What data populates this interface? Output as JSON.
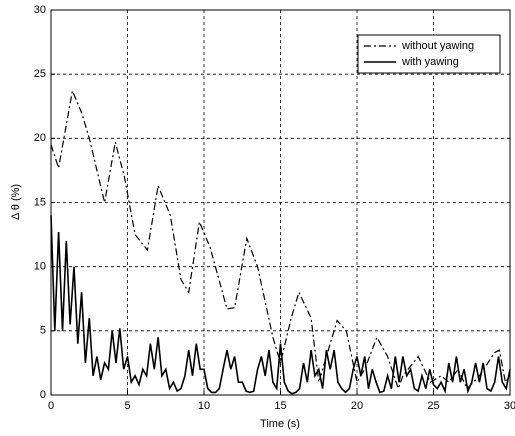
{
  "chart_data": {
    "type": "line",
    "xlabel": "Time (s)",
    "ylabel": "Δ θ (%)",
    "xlim": [
      0,
      30
    ],
    "ylim": [
      0,
      30
    ],
    "xticks": [
      0,
      5,
      10,
      15,
      20,
      25,
      30
    ],
    "yticks": [
      0,
      5,
      10,
      15,
      20,
      25,
      30
    ],
    "grid": true,
    "legend": "upper right",
    "series": [
      {
        "name": "without yawing",
        "color": "#000000",
        "dash": "dashdot",
        "x": [
          0,
          0.5,
          1.4,
          2,
          2.5,
          3.5,
          4.2,
          4.8,
          5.5,
          6.3,
          7,
          7.8,
          8.5,
          9,
          9.7,
          10.4,
          11.5,
          12,
          12.8,
          13.5,
          14.5,
          15,
          15.7,
          16.2,
          17,
          17.5,
          18,
          18.7,
          19.3,
          20,
          20.5,
          21.3,
          22,
          22.7,
          23,
          24,
          24.8,
          25.5,
          26,
          26.6,
          27.2,
          28,
          29,
          29.3,
          29.7,
          30
        ],
        "values": [
          19.5,
          17.7,
          23.7,
          22,
          20,
          15,
          19.7,
          17,
          12.5,
          11.3,
          16.3,
          14,
          9,
          8,
          13.5,
          11.5,
          6.7,
          6.8,
          12.2,
          10,
          4.5,
          2.5,
          6,
          8,
          6,
          1,
          3,
          5.8,
          5,
          1,
          2,
          4.5,
          3,
          0.5,
          1.5,
          3,
          1,
          1.5,
          1,
          2,
          0.5,
          1.5,
          3.3,
          3.5,
          1,
          1.5
        ]
      },
      {
        "name": "with yawing",
        "color": "#000000",
        "dash": "solid",
        "x": [
          0,
          0.25,
          0.5,
          0.75,
          1,
          1.25,
          1.5,
          1.75,
          2,
          2.25,
          2.5,
          2.75,
          3,
          3.25,
          3.5,
          3.75,
          4,
          4.25,
          4.5,
          4.75,
          5,
          5.25,
          5.5,
          5.75,
          6,
          6.25,
          6.5,
          6.75,
          7,
          7.25,
          7.5,
          7.75,
          8,
          8.25,
          8.5,
          8.75,
          9,
          9.25,
          9.5,
          9.75,
          10,
          10.25,
          10.5,
          10.75,
          11,
          11.25,
          11.5,
          11.75,
          12,
          12.25,
          12.5,
          12.75,
          13,
          13.25,
          13.5,
          13.75,
          14,
          14.25,
          14.5,
          14.75,
          15,
          15.25,
          15.5,
          15.75,
          16,
          16.25,
          16.5,
          16.75,
          17,
          17.25,
          17.5,
          17.75,
          18,
          18.25,
          18.5,
          18.75,
          19,
          19.25,
          19.5,
          19.75,
          20,
          20.25,
          20.5,
          20.75,
          21,
          21.25,
          21.5,
          21.75,
          22,
          22.25,
          22.5,
          22.75,
          23,
          23.25,
          23.5,
          23.75,
          24,
          24.25,
          24.5,
          24.75,
          25,
          25.25,
          25.5,
          25.75,
          26,
          26.25,
          26.5,
          26.75,
          27,
          27.25,
          27.5,
          27.75,
          28,
          28.25,
          28.5,
          28.75,
          29,
          29.25,
          29.5,
          29.75,
          30
        ],
        "values": [
          14,
          5,
          12.7,
          5,
          12,
          5.5,
          10,
          4,
          8,
          2.5,
          6,
          1.5,
          3,
          1.2,
          2.5,
          2,
          5,
          2.5,
          5.2,
          2,
          3,
          1,
          1.5,
          0.8,
          2,
          1.5,
          4,
          2,
          4.5,
          1.5,
          2,
          0.5,
          1,
          0.3,
          0.5,
          1.5,
          3.5,
          1.5,
          4,
          2,
          2,
          0.5,
          0.2,
          0.2,
          0.5,
          2,
          3.5,
          2,
          3,
          1,
          1,
          0.3,
          0.2,
          0.3,
          2,
          3,
          1.5,
          3.5,
          1,
          0.5,
          4,
          1,
          0.3,
          0.1,
          0.2,
          0.5,
          2.5,
          1,
          3.5,
          1.5,
          2,
          0.5,
          3.5,
          2,
          3.5,
          1,
          0.5,
          0.2,
          0.5,
          2,
          3,
          1.5,
          3,
          0.5,
          2,
          1,
          0.2,
          0.3,
          1.5,
          0.5,
          3,
          1,
          3,
          1.5,
          2,
          0.5,
          0.3,
          1.5,
          0.5,
          2,
          0.8,
          0.5,
          1,
          0.3,
          2.5,
          1,
          3,
          1,
          2,
          0.3,
          1,
          2.5,
          1,
          2.5,
          0.5,
          0.3,
          1,
          3,
          1,
          0.5,
          2
        ]
      }
    ]
  }
}
